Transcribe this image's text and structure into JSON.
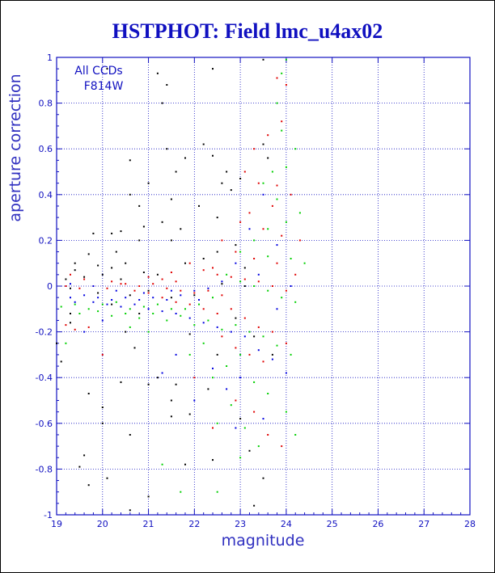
{
  "chart_data": {
    "type": "scatter",
    "title": "HSTPHOT: Field lmc_u4ax02",
    "xlabel": "magnitude",
    "ylabel": "aperture correction",
    "xlim": [
      19,
      28
    ],
    "ylim": [
      -1,
      1
    ],
    "x_ticks": [
      19,
      20,
      21,
      22,
      23,
      24,
      25,
      26,
      27,
      28
    ],
    "y_ticks": [
      -1,
      -0.8,
      -0.6,
      -0.4,
      -0.2,
      0,
      0.2,
      0.4,
      0.6,
      0.8,
      1
    ],
    "x_tick_labels": [
      "19",
      "20",
      "21",
      "22",
      "23",
      "24",
      "25",
      "26",
      "27",
      "28"
    ],
    "y_tick_labels": [
      "-1",
      "-0.8",
      "-0.6",
      "-0.4",
      "-0.2",
      "0",
      "0.2",
      "0.4",
      "0.6",
      "0.8",
      "1"
    ],
    "grid": true,
    "annotations": [
      "All CCDs",
      "F814W"
    ],
    "colors": {
      "title": "#1010c0",
      "axes": "#1010c0",
      "grid": "#1010c0"
    },
    "series": [
      {
        "color": "#000000",
        "points": [
          [
            20.1,
            0.95
          ],
          [
            21.2,
            0.93
          ],
          [
            21.4,
            0.88
          ],
          [
            22.4,
            0.95
          ],
          [
            23.5,
            0.99
          ],
          [
            21.3,
            0.8
          ],
          [
            22.2,
            0.62
          ],
          [
            21.4,
            0.6
          ],
          [
            20.6,
            0.55
          ],
          [
            21.8,
            0.56
          ],
          [
            22.4,
            0.57
          ],
          [
            21.6,
            0.5
          ],
          [
            20.6,
            0.4
          ],
          [
            20.8,
            0.35
          ],
          [
            21.5,
            0.38
          ],
          [
            22.1,
            0.35
          ],
          [
            21.0,
            0.45
          ],
          [
            20.9,
            0.26
          ],
          [
            21.7,
            0.25
          ],
          [
            20.2,
            0.23
          ],
          [
            20.4,
            0.24
          ],
          [
            19.8,
            0.23
          ],
          [
            21.3,
            0.28
          ],
          [
            22.5,
            0.3
          ],
          [
            22.6,
            0.45
          ],
          [
            22.8,
            0.42
          ],
          [
            23.0,
            0.47
          ],
          [
            22.7,
            0.5
          ],
          [
            23.6,
            0.56
          ],
          [
            23.5,
            0.62
          ],
          [
            20.8,
            0.2
          ],
          [
            21.5,
            0.2
          ],
          [
            20.3,
            0.15
          ],
          [
            19.4,
            0.1
          ],
          [
            19.7,
            0.14
          ],
          [
            19.9,
            0.09
          ],
          [
            20.2,
            0.08
          ],
          [
            20.5,
            0.1
          ],
          [
            20.9,
            0.06
          ],
          [
            21.2,
            0.05
          ],
          [
            21.8,
            0.1
          ],
          [
            22.2,
            0.12
          ],
          [
            22.5,
            0.15
          ],
          [
            22.9,
            0.18
          ],
          [
            23.1,
            0.08
          ],
          [
            19.4,
            0.07
          ],
          [
            19.2,
            0.03
          ],
          [
            19.6,
            0.04
          ],
          [
            20.0,
            0.05
          ],
          [
            20.4,
            0.03
          ],
          [
            19.3,
            -0.01
          ],
          [
            19.9,
            -0.03
          ],
          [
            20.6,
            -0.04
          ],
          [
            21.0,
            -0.02
          ],
          [
            21.5,
            -0.05
          ],
          [
            22.0,
            -0.04
          ],
          [
            22.6,
            0.01
          ],
          [
            23.1,
            0.0
          ],
          [
            19.3,
            -0.12
          ],
          [
            20.7,
            -0.27
          ],
          [
            21.2,
            -0.4
          ],
          [
            21.0,
            -0.43
          ],
          [
            21.5,
            -0.5
          ],
          [
            20.4,
            -0.42
          ],
          [
            19.7,
            -0.47
          ],
          [
            20.0,
            -0.53
          ],
          [
            20.0,
            -0.6
          ],
          [
            20.1,
            -0.84
          ],
          [
            19.7,
            -0.87
          ],
          [
            19.6,
            -0.74
          ],
          [
            19.5,
            -0.79
          ],
          [
            20.6,
            -0.98
          ],
          [
            21.0,
            -0.92
          ],
          [
            21.5,
            -0.57
          ],
          [
            20.6,
            -0.65
          ],
          [
            21.9,
            -0.56
          ],
          [
            21.8,
            -0.78
          ],
          [
            22.4,
            -0.76
          ],
          [
            23.2,
            -0.72
          ],
          [
            23.3,
            -0.96
          ],
          [
            23.5,
            -0.84
          ],
          [
            23.0,
            -0.58
          ],
          [
            22.3,
            -0.45
          ],
          [
            22.5,
            -0.3
          ],
          [
            21.6,
            -0.43
          ],
          [
            20.8,
            -0.12
          ],
          [
            21.9,
            -0.21
          ],
          [
            19.3,
            -0.16
          ],
          [
            20.5,
            -0.2
          ],
          [
            19.0,
            -0.25
          ],
          [
            19.1,
            -0.33
          ],
          [
            20.2,
            -0.08
          ],
          [
            22.9,
            -0.14
          ],
          [
            23.3,
            -0.22
          ],
          [
            23.7,
            -0.3
          ]
        ]
      },
      {
        "color": "#e00000",
        "points": [
          [
            23.8,
            0.91
          ],
          [
            24.0,
            0.88
          ],
          [
            23.9,
            0.72
          ],
          [
            23.6,
            0.66
          ],
          [
            23.3,
            0.6
          ],
          [
            23.1,
            0.5
          ],
          [
            23.4,
            0.45
          ],
          [
            23.8,
            0.44
          ],
          [
            24.1,
            0.4
          ],
          [
            23.7,
            0.35
          ],
          [
            23.2,
            0.32
          ],
          [
            23.0,
            0.28
          ],
          [
            23.5,
            0.25
          ],
          [
            23.9,
            0.22
          ],
          [
            24.3,
            0.2
          ],
          [
            22.6,
            0.2
          ],
          [
            22.9,
            0.15
          ],
          [
            23.3,
            0.12
          ],
          [
            23.8,
            0.1
          ],
          [
            24.2,
            0.05
          ],
          [
            21.9,
            0.1
          ],
          [
            22.2,
            0.07
          ],
          [
            22.5,
            0.05
          ],
          [
            22.8,
            0.04
          ],
          [
            23.1,
            0.03
          ],
          [
            23.4,
            0.02
          ],
          [
            23.7,
            0.0
          ],
          [
            24.0,
            -0.02
          ],
          [
            21.0,
            0.04
          ],
          [
            21.3,
            0.03
          ],
          [
            21.6,
            0.02
          ],
          [
            20.5,
            0.01
          ],
          [
            20.8,
            0.0
          ],
          [
            21.1,
            0.01
          ],
          [
            21.4,
            -0.01
          ],
          [
            21.7,
            -0.02
          ],
          [
            22.0,
            -0.03
          ],
          [
            22.3,
            -0.02
          ],
          [
            22.6,
            -0.04
          ],
          [
            19.2,
            0.0
          ],
          [
            19.5,
            -0.01
          ],
          [
            19.8,
            0.0
          ],
          [
            20.1,
            -0.01
          ],
          [
            20.4,
            0.01
          ],
          [
            20.7,
            -0.02
          ],
          [
            21.0,
            -0.03
          ],
          [
            21.3,
            -0.05
          ],
          [
            21.6,
            -0.07
          ],
          [
            21.9,
            -0.08
          ],
          [
            22.2,
            -0.1
          ],
          [
            22.5,
            -0.12
          ],
          [
            22.8,
            -0.1
          ],
          [
            23.1,
            -0.14
          ],
          [
            23.4,
            -0.18
          ],
          [
            23.7,
            -0.2
          ],
          [
            24.0,
            -0.25
          ],
          [
            23.5,
            -0.33
          ],
          [
            23.2,
            -0.3
          ],
          [
            22.9,
            -0.27
          ],
          [
            22.6,
            -0.22
          ],
          [
            19.2,
            -0.17
          ],
          [
            19.4,
            -0.19
          ],
          [
            19.7,
            -0.18
          ],
          [
            20.0,
            -0.3
          ],
          [
            22.0,
            -0.4
          ],
          [
            22.4,
            -0.62
          ],
          [
            22.9,
            -0.5
          ],
          [
            23.6,
            -0.65
          ],
          [
            23.3,
            -0.55
          ],
          [
            23.9,
            -0.7
          ],
          [
            19.3,
            0.05
          ],
          [
            19.6,
            0.03
          ],
          [
            20.2,
            0.02
          ],
          [
            21.5,
            0.06
          ],
          [
            22.4,
            0.08
          ]
        ]
      },
      {
        "color": "#00d000",
        "points": [
          [
            24.0,
            0.99
          ],
          [
            23.9,
            0.93
          ],
          [
            23.8,
            0.8
          ],
          [
            23.9,
            0.68
          ],
          [
            24.2,
            0.6
          ],
          [
            24.0,
            0.52
          ],
          [
            23.7,
            0.5
          ],
          [
            23.5,
            0.45
          ],
          [
            23.8,
            0.38
          ],
          [
            24.3,
            0.32
          ],
          [
            24.0,
            0.28
          ],
          [
            23.6,
            0.25
          ],
          [
            23.3,
            0.2
          ],
          [
            23.0,
            0.15
          ],
          [
            23.6,
            0.13
          ],
          [
            24.1,
            0.12
          ],
          [
            24.4,
            0.1
          ],
          [
            22.7,
            0.05
          ],
          [
            23.0,
            0.02
          ],
          [
            23.3,
            0.0
          ],
          [
            23.6,
            -0.02
          ],
          [
            23.9,
            -0.05
          ],
          [
            24.2,
            -0.07
          ],
          [
            22.4,
            -0.05
          ],
          [
            22.1,
            -0.08
          ],
          [
            21.8,
            -0.1
          ],
          [
            21.5,
            -0.1
          ],
          [
            21.2,
            -0.08
          ],
          [
            20.9,
            -0.09
          ],
          [
            20.6,
            -0.1
          ],
          [
            20.3,
            -0.07
          ],
          [
            20.0,
            -0.08
          ],
          [
            19.7,
            -0.1
          ],
          [
            19.4,
            -0.08
          ],
          [
            19.1,
            -0.09
          ],
          [
            19.5,
            -0.12
          ],
          [
            19.9,
            -0.11
          ],
          [
            20.2,
            -0.13
          ],
          [
            20.5,
            -0.12
          ],
          [
            20.8,
            -0.14
          ],
          [
            21.1,
            -0.12
          ],
          [
            21.4,
            -0.15
          ],
          [
            21.7,
            -0.13
          ],
          [
            22.0,
            -0.17
          ],
          [
            22.3,
            -0.15
          ],
          [
            22.6,
            -0.19
          ],
          [
            22.9,
            -0.17
          ],
          [
            23.2,
            -0.2
          ],
          [
            23.5,
            -0.22
          ],
          [
            23.8,
            -0.26
          ],
          [
            24.1,
            -0.3
          ],
          [
            23.0,
            -0.3
          ],
          [
            22.7,
            -0.35
          ],
          [
            22.4,
            -0.4
          ],
          [
            23.3,
            -0.42
          ],
          [
            23.6,
            -0.47
          ],
          [
            24.0,
            -0.55
          ],
          [
            22.8,
            -0.52
          ],
          [
            22.5,
            -0.6
          ],
          [
            23.1,
            -0.62
          ],
          [
            23.4,
            -0.7
          ],
          [
            24.2,
            -0.65
          ],
          [
            21.3,
            -0.78
          ],
          [
            21.7,
            -0.9
          ],
          [
            22.5,
            -0.9
          ],
          [
            23.0,
            -0.75
          ],
          [
            19.2,
            -0.25
          ],
          [
            20.6,
            -0.18
          ],
          [
            21.9,
            -0.3
          ],
          [
            22.2,
            -0.25
          ],
          [
            21.0,
            -0.2
          ]
        ]
      },
      {
        "color": "#0000e0",
        "points": [
          [
            23.5,
            0.4
          ],
          [
            23.2,
            0.25
          ],
          [
            23.8,
            0.18
          ],
          [
            22.9,
            0.1
          ],
          [
            22.6,
            0.02
          ],
          [
            22.3,
            -0.01
          ],
          [
            22.0,
            -0.02
          ],
          [
            21.7,
            -0.04
          ],
          [
            21.4,
            -0.06
          ],
          [
            21.1,
            -0.05
          ],
          [
            20.8,
            -0.06
          ],
          [
            20.5,
            -0.05
          ],
          [
            20.2,
            -0.06
          ],
          [
            19.9,
            -0.05
          ],
          [
            19.6,
            -0.04
          ],
          [
            19.3,
            -0.05
          ],
          [
            19.4,
            -0.07
          ],
          [
            19.8,
            -0.07
          ],
          [
            20.1,
            -0.08
          ],
          [
            20.4,
            -0.09
          ],
          [
            20.7,
            -0.08
          ],
          [
            21.0,
            -0.1
          ],
          [
            21.3,
            -0.11
          ],
          [
            21.6,
            -0.12
          ],
          [
            21.9,
            -0.14
          ],
          [
            22.2,
            -0.16
          ],
          [
            22.5,
            -0.18
          ],
          [
            22.8,
            -0.2
          ],
          [
            23.1,
            -0.22
          ],
          [
            23.4,
            -0.28
          ],
          [
            23.7,
            -0.32
          ],
          [
            24.0,
            -0.38
          ],
          [
            23.0,
            -0.4
          ],
          [
            22.7,
            -0.45
          ],
          [
            22.4,
            -0.36
          ],
          [
            21.3,
            -0.38
          ],
          [
            21.6,
            -0.3
          ],
          [
            20.0,
            -0.15
          ],
          [
            19.6,
            -0.2
          ],
          [
            22.9,
            -0.62
          ],
          [
            23.5,
            -0.58
          ],
          [
            22.0,
            -0.5
          ],
          [
            24.1,
            0.0
          ],
          [
            23.4,
            0.05
          ],
          [
            23.8,
            -0.1
          ],
          [
            19.3,
            0.01
          ],
          [
            19.8,
            0.0
          ],
          [
            20.3,
            -0.02
          ],
          [
            20.9,
            -0.03
          ],
          [
            21.5,
            -0.02
          ],
          [
            22.1,
            -0.06
          ]
        ]
      }
    ]
  }
}
